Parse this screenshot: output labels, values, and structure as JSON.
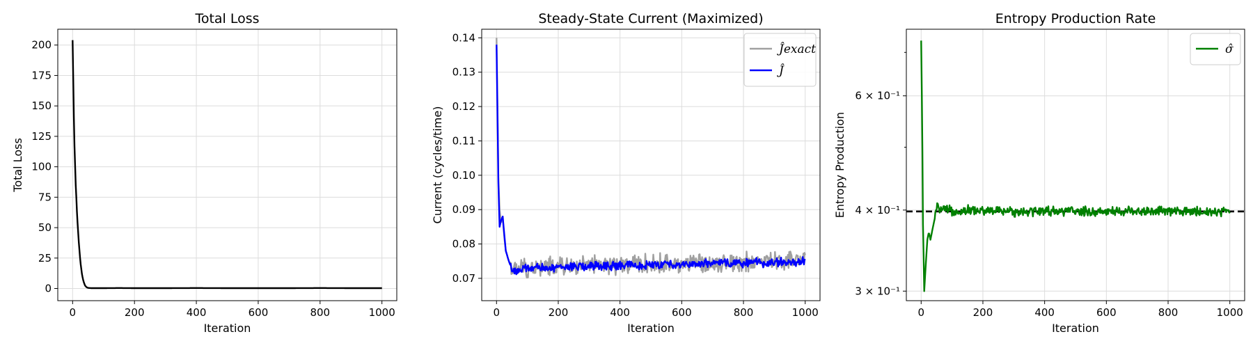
{
  "chart_data": [
    {
      "type": "line",
      "title": "Total Loss",
      "xlabel": "Iteration",
      "ylabel": "Total Loss",
      "xlim": [
        -48,
        1048
      ],
      "ylim": [
        -10,
        213
      ],
      "xticks": [
        0,
        200,
        400,
        600,
        800,
        1000
      ],
      "xtick_labels": [
        "0",
        "200",
        "400",
        "600",
        "800",
        "1000"
      ],
      "yticks": [
        0,
        25,
        50,
        75,
        100,
        125,
        150,
        175,
        200
      ],
      "ytick_labels": [
        "0",
        "25",
        "50",
        "75",
        "100",
        "125",
        "150",
        "175",
        "200"
      ],
      "grid": true,
      "legend": null,
      "series": [
        {
          "color": "#000000",
          "x": [
            0,
            5,
            10,
            15,
            20,
            25,
            30,
            35,
            40,
            45,
            50,
            60,
            80,
            100,
            150,
            200,
            300,
            400,
            500,
            600,
            700,
            800,
            900,
            1000
          ],
          "y": [
            204,
            125,
            85,
            58,
            38,
            22,
            12,
            6,
            2.5,
            1,
            0.5,
            0.3,
            0.3,
            0.3,
            0.4,
            0.3,
            0.3,
            0.4,
            0.3,
            0.3,
            0.3,
            0.4,
            0.3,
            0.3
          ]
        }
      ]
    },
    {
      "type": "line",
      "title": "Steady-State Current (Maximized)",
      "xlabel": "Iteration",
      "ylabel": "Current (cycles/time)",
      "xlim": [
        -48,
        1048
      ],
      "ylim": [
        0.0635,
        0.1425
      ],
      "xticks": [
        0,
        200,
        400,
        600,
        800,
        1000
      ],
      "xtick_labels": [
        "0",
        "200",
        "400",
        "600",
        "800",
        "1000"
      ],
      "yticks": [
        0.07,
        0.08,
        0.09,
        0.1,
        0.11,
        0.12,
        0.13,
        0.14
      ],
      "ytick_labels": [
        "0.07",
        "0.08",
        "0.09",
        "0.10",
        "0.11",
        "0.12",
        "0.13",
        "0.14"
      ],
      "grid": true,
      "legend": "top-right",
      "series": [
        {
          "name": "Ĵexact",
          "color": "#a0a0a0",
          "x": [
            0,
            3,
            6,
            10,
            15,
            20,
            25,
            30,
            40,
            50,
            60,
            80,
            100,
            150,
            200,
            250,
            300,
            350,
            400,
            450,
            500,
            550,
            600,
            650,
            700,
            750,
            800,
            850,
            900,
            950,
            1000
          ],
          "y": [
            0.14,
            0.12,
            0.1,
            0.09,
            0.086,
            0.088,
            0.082,
            0.078,
            0.075,
            0.073,
            0.072,
            0.073,
            0.073,
            0.0732,
            0.0734,
            0.0735,
            0.0736,
            0.0738,
            0.0739,
            0.074,
            0.0741,
            0.0742,
            0.0743,
            0.0744,
            0.0745,
            0.0746,
            0.0747,
            0.0748,
            0.0749,
            0.075,
            0.0751
          ],
          "noise": 0.0024
        },
        {
          "name": "Ĵ",
          "color": "#0000ff",
          "x": [
            0,
            3,
            6,
            10,
            15,
            20,
            25,
            30,
            40,
            50,
            60,
            80,
            100,
            150,
            200,
            250,
            300,
            350,
            400,
            450,
            500,
            550,
            600,
            650,
            700,
            750,
            800,
            850,
            900,
            950,
            1000
          ],
          "y": [
            0.138,
            0.118,
            0.098,
            0.085,
            0.087,
            0.088,
            0.083,
            0.078,
            0.075,
            0.0725,
            0.072,
            0.0725,
            0.0728,
            0.073,
            0.0732,
            0.0733,
            0.0735,
            0.0736,
            0.0737,
            0.0738,
            0.0739,
            0.074,
            0.0741,
            0.0742,
            0.0743,
            0.0744,
            0.0745,
            0.0746,
            0.0747,
            0.0748,
            0.0749
          ],
          "noise": 0.0011
        }
      ]
    },
    {
      "type": "line",
      "title": "Entropy Production Rate",
      "xlabel": "Iteration",
      "ylabel": "Entropy Production",
      "yscale": "log",
      "xlim": [
        -48,
        1048
      ],
      "ylim": [
        0.29,
        0.76
      ],
      "xticks": [
        0,
        200,
        400,
        600,
        800,
        1000
      ],
      "xtick_labels": [
        "0",
        "200",
        "400",
        "600",
        "800",
        "1000"
      ],
      "yticks": [
        0.3,
        0.4,
        0.6
      ],
      "ytick_labels": [
        "3 × 10⁻¹",
        "4 × 10⁻¹",
        "6 × 10⁻¹"
      ],
      "minor_yticks": [
        0.5,
        0.7
      ],
      "grid": true,
      "legend": "top-right",
      "reference_line": {
        "y": 0.398,
        "color": "#000000",
        "style": "dashed"
      },
      "series": [
        {
          "name": "σ̂",
          "color": "#008000",
          "x": [
            0,
            3,
            6,
            10,
            15,
            20,
            25,
            30,
            35,
            40,
            45,
            50,
            60,
            80,
            100,
            150,
            200,
            300,
            400,
            500,
            600,
            700,
            800,
            900,
            1000
          ],
          "y": [
            0.73,
            0.55,
            0.38,
            0.3,
            0.33,
            0.36,
            0.37,
            0.36,
            0.37,
            0.38,
            0.39,
            0.405,
            0.4,
            0.4,
            0.398,
            0.4,
            0.399,
            0.398,
            0.399,
            0.398,
            0.398,
            0.399,
            0.398,
            0.398,
            0.398
          ],
          "noise": 0.006
        }
      ]
    }
  ]
}
